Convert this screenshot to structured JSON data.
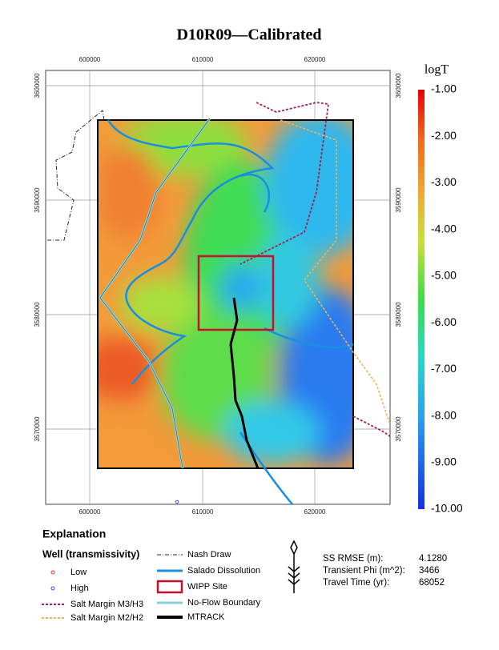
{
  "title": "D10R09—Calibrated",
  "map": {
    "x_ticks_top": [
      "600000",
      "610000",
      "620000"
    ],
    "x_ticks_bottom": [
      "600000",
      "610000",
      "620000"
    ],
    "y_ticks_left": [
      "3600000",
      "3590000",
      "3580000",
      "3570000"
    ],
    "y_ticks_right": [
      "3600000",
      "3590000",
      "3580000",
      "3570000"
    ]
  },
  "colorbar": {
    "title": "logT",
    "ticks": [
      "-1.00",
      "-2.00",
      "-3.00",
      "-4.00",
      "-5.00",
      "-6.00",
      "-7.00",
      "-8.00",
      "-9.00",
      "-10.00"
    ]
  },
  "legend": {
    "heading": "Explanation",
    "subheading": "Well (transmissivity)",
    "items": [
      "Low",
      "High",
      "Salt Margin M3/H3",
      "Salt Margin M2/H2",
      "Nash Draw",
      "Salado Dissolution",
      "WIPP Site",
      "No-Flow Boundary",
      "MTRACK"
    ]
  },
  "stats": [
    {
      "label": "SS RMSE (m):",
      "value": "4.1280"
    },
    {
      "label": "Transient Phi (m^2):",
      "value": "3466"
    },
    {
      "label": "Travel Time (yr):",
      "value": "68052"
    }
  ]
}
